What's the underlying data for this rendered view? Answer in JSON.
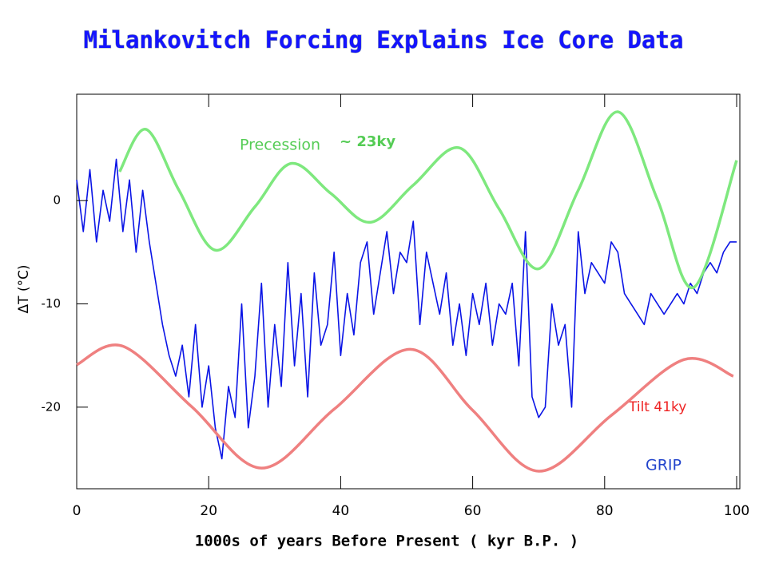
{
  "chart_data": {
    "type": "line",
    "title": "Milankovitch Forcing Explains Ice Core Data",
    "xlabel": "1000s of years Before Present ( kyr B.P. )",
    "ylabel": "ΔT (°C)",
    "xlim": [
      0,
      100
    ],
    "xticks": [
      0,
      20,
      40,
      60,
      80,
      100
    ],
    "ylim": [
      -27.9,
      10.3
    ],
    "yticks": [
      0,
      -10,
      -20
    ],
    "annotations": {
      "precession": "Precession",
      "precession_period": "~ 23ky",
      "tilt": "Tilt 41ky",
      "grip": "GRIP"
    },
    "series": [
      {
        "name": "GRIP",
        "color": "#0a14e6",
        "x": [
          0,
          1,
          2,
          3,
          4,
          5,
          6,
          7,
          8,
          9,
          10,
          11,
          12,
          13,
          14,
          15,
          16,
          17,
          18,
          19,
          20,
          21,
          22,
          23,
          24,
          25,
          26,
          27,
          28,
          29,
          30,
          31,
          32,
          33,
          34,
          35,
          36,
          37,
          38,
          39,
          40,
          41,
          42,
          43,
          44,
          45,
          46,
          47,
          48,
          49,
          50,
          51,
          52,
          53,
          54,
          55,
          56,
          57,
          58,
          59,
          60,
          61,
          62,
          63,
          64,
          65,
          66,
          67,
          68,
          69,
          70,
          71,
          72,
          73,
          74,
          75,
          76,
          77,
          78,
          79,
          80,
          81,
          82,
          83,
          84,
          85,
          86,
          87,
          88,
          89,
          90,
          91,
          92,
          93,
          94,
          95,
          96,
          97,
          98,
          99,
          100
        ],
        "values": [
          2,
          -3,
          3,
          -4,
          1,
          -2,
          4,
          -3,
          2,
          -5,
          1,
          -4,
          -8,
          -12,
          -15,
          -17,
          -14,
          -19,
          -12,
          -20,
          -16,
          -22,
          -25,
          -18,
          -21,
          -10,
          -22,
          -17,
          -8,
          -20,
          -12,
          -18,
          -6,
          -16,
          -9,
          -19,
          -7,
          -14,
          -12,
          -5,
          -15,
          -9,
          -13,
          -6,
          -4,
          -11,
          -7,
          -3,
          -9,
          -5,
          -6,
          -2,
          -12,
          -5,
          -8,
          -11,
          -7,
          -14,
          -10,
          -15,
          -9,
          -12,
          -8,
          -14,
          -10,
          -11,
          -8,
          -16,
          -3,
          -19,
          -21,
          -20,
          -10,
          -14,
          -12,
          -20,
          -3,
          -9,
          -6,
          -7,
          -8,
          -4,
          -5,
          -9,
          -10,
          -11,
          -12,
          -9,
          -10,
          -11,
          -10,
          -9,
          -10,
          -8,
          -9,
          -7,
          -6,
          -7,
          -5,
          -4,
          -4
        ]
      },
      {
        "name": "Precession",
        "color": "#7ee87e",
        "x": [
          6.5,
          10.5,
          15.5,
          21,
          27,
          32.5,
          38.5,
          44.5,
          51,
          58,
          64,
          70,
          76,
          82,
          88,
          93.5,
          100
        ],
        "values": [
          2.8,
          6.9,
          1,
          -4.8,
          -0.6,
          3.6,
          0.7,
          -2.1,
          1.5,
          5.1,
          -0.8,
          -6.6,
          1,
          8.6,
          0.1,
          -8.4,
          3.9
        ]
      },
      {
        "name": "Tilt",
        "color": "#ef8080",
        "x": [
          0,
          7,
          17.5,
          28,
          39,
          50.5,
          60,
          70,
          81,
          92,
          99.5
        ],
        "values": [
          -15.9,
          -14.1,
          -20,
          -25.9,
          -20.2,
          -14.4,
          -20.3,
          -26.2,
          -20.8,
          -15.4,
          -17
        ]
      }
    ]
  }
}
